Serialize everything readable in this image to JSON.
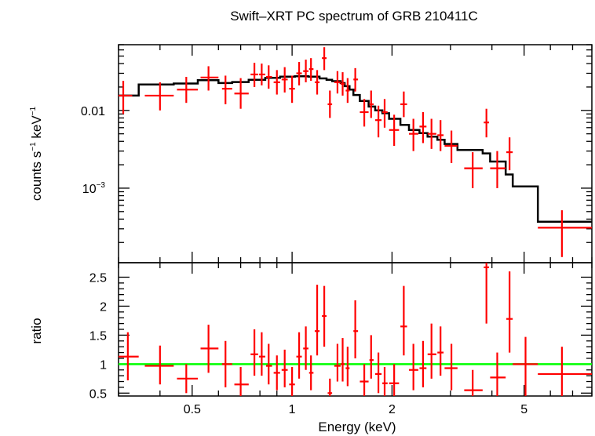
{
  "chart_data": {
    "title": "Swift–XRT PC spectrum of GRB 210411C",
    "xlabel": "Energy (keV)",
    "x_scale": "log",
    "xlim": [
      0.3,
      8.0
    ],
    "x_ticks": [
      {
        "value": 0.5,
        "label": "0.5"
      },
      {
        "value": 1,
        "label": "1"
      },
      {
        "value": 2,
        "label": "2"
      },
      {
        "value": 5,
        "label": "5"
      }
    ],
    "top_panel": {
      "type": "scatter",
      "ylabel_main": "counts s",
      "ylabel_sup1": "−1",
      "ylabel_mid": " keV",
      "ylabel_sup2": "−1",
      "y_scale": "log",
      "ylim": [
        0.00011,
        0.07
      ],
      "y_ticks": [
        {
          "value": 0.01,
          "base": "0.01",
          "sup": ""
        },
        {
          "value": 0.001,
          "base": "10",
          "sup": "−3"
        }
      ],
      "data_color": "#ff0000",
      "model_color": "#000000",
      "data": [
        {
          "x": 0.31,
          "xlo": 0.3,
          "xhi": 0.33,
          "y": 0.0155,
          "ylo": 0.009,
          "yhi": 0.024
        },
        {
          "x": 0.4,
          "xlo": 0.36,
          "xhi": 0.44,
          "y": 0.0155,
          "ylo": 0.01,
          "yhi": 0.023
        },
        {
          "x": 0.48,
          "xlo": 0.45,
          "xhi": 0.52,
          "y": 0.0185,
          "ylo": 0.0125,
          "yhi": 0.027
        },
        {
          "x": 0.56,
          "xlo": 0.53,
          "xhi": 0.6,
          "y": 0.0265,
          "ylo": 0.018,
          "yhi": 0.037
        },
        {
          "x": 0.63,
          "xlo": 0.615,
          "xhi": 0.66,
          "y": 0.019,
          "ylo": 0.012,
          "yhi": 0.028
        },
        {
          "x": 0.7,
          "xlo": 0.67,
          "xhi": 0.74,
          "y": 0.0165,
          "ylo": 0.0105,
          "yhi": 0.026
        },
        {
          "x": 0.77,
          "xlo": 0.75,
          "xhi": 0.79,
          "y": 0.029,
          "ylo": 0.02,
          "yhi": 0.041
        },
        {
          "x": 0.81,
          "xlo": 0.795,
          "xhi": 0.83,
          "y": 0.029,
          "ylo": 0.021,
          "yhi": 0.04
        },
        {
          "x": 0.85,
          "xlo": 0.835,
          "xhi": 0.87,
          "y": 0.027,
          "ylo": 0.019,
          "yhi": 0.038
        },
        {
          "x": 0.9,
          "xlo": 0.88,
          "xhi": 0.92,
          "y": 0.023,
          "ylo": 0.016,
          "yhi": 0.033
        },
        {
          "x": 0.95,
          "xlo": 0.93,
          "xhi": 0.97,
          "y": 0.025,
          "ylo": 0.017,
          "yhi": 0.036
        },
        {
          "x": 1.0,
          "xlo": 0.98,
          "xhi": 1.02,
          "y": 0.019,
          "ylo": 0.0125,
          "yhi": 0.028
        },
        {
          "x": 1.05,
          "xlo": 1.03,
          "xhi": 1.07,
          "y": 0.03,
          "ylo": 0.021,
          "yhi": 0.042
        },
        {
          "x": 1.1,
          "xlo": 1.08,
          "xhi": 1.12,
          "y": 0.032,
          "ylo": 0.023,
          "yhi": 0.045
        },
        {
          "x": 1.14,
          "xlo": 1.125,
          "xhi": 1.16,
          "y": 0.034,
          "ylo": 0.024,
          "yhi": 0.047
        },
        {
          "x": 1.19,
          "xlo": 1.17,
          "xhi": 1.21,
          "y": 0.023,
          "ylo": 0.016,
          "yhi": 0.033
        },
        {
          "x": 1.25,
          "xlo": 1.23,
          "xhi": 1.27,
          "y": 0.047,
          "ylo": 0.033,
          "yhi": 0.065
        },
        {
          "x": 1.3,
          "xlo": 1.28,
          "xhi": 1.32,
          "y": 0.012,
          "ylo": 0.008,
          "yhi": 0.018
        },
        {
          "x": 1.37,
          "xlo": 1.34,
          "xhi": 1.4,
          "y": 0.023,
          "ylo": 0.0165,
          "yhi": 0.032
        },
        {
          "x": 1.42,
          "xlo": 1.4,
          "xhi": 1.44,
          "y": 0.022,
          "ylo": 0.0155,
          "yhi": 0.031
        },
        {
          "x": 1.47,
          "xlo": 1.45,
          "xhi": 1.49,
          "y": 0.018,
          "ylo": 0.0125,
          "yhi": 0.026
        },
        {
          "x": 1.55,
          "xlo": 1.53,
          "xhi": 1.58,
          "y": 0.025,
          "ylo": 0.0175,
          "yhi": 0.035
        },
        {
          "x": 1.65,
          "xlo": 1.6,
          "xhi": 1.7,
          "y": 0.0095,
          "ylo": 0.0062,
          "yhi": 0.014
        },
        {
          "x": 1.73,
          "xlo": 1.71,
          "xhi": 1.76,
          "y": 0.012,
          "ylo": 0.008,
          "yhi": 0.018
        },
        {
          "x": 1.82,
          "xlo": 1.78,
          "xhi": 1.86,
          "y": 0.0075,
          "ylo": 0.0045,
          "yhi": 0.0115
        },
        {
          "x": 1.9,
          "xlo": 1.87,
          "xhi": 1.94,
          "y": 0.0095,
          "ylo": 0.006,
          "yhi": 0.014
        },
        {
          "x": 2.03,
          "xlo": 1.96,
          "xhi": 2.1,
          "y": 0.0056,
          "ylo": 0.0035,
          "yhi": 0.0088
        },
        {
          "x": 2.17,
          "xlo": 2.12,
          "xhi": 2.22,
          "y": 0.012,
          "ylo": 0.0082,
          "yhi": 0.0175
        },
        {
          "x": 2.32,
          "xlo": 2.25,
          "xhi": 2.4,
          "y": 0.005,
          "ylo": 0.003,
          "yhi": 0.0078
        },
        {
          "x": 2.48,
          "xlo": 2.42,
          "xhi": 2.54,
          "y": 0.0062,
          "ylo": 0.0038,
          "yhi": 0.0095
        },
        {
          "x": 2.63,
          "xlo": 2.56,
          "xhi": 2.72,
          "y": 0.005,
          "ylo": 0.0032,
          "yhi": 0.0078
        },
        {
          "x": 2.8,
          "xlo": 2.74,
          "xhi": 2.86,
          "y": 0.0048,
          "ylo": 0.003,
          "yhi": 0.0075
        },
        {
          "x": 3.02,
          "xlo": 2.88,
          "xhi": 3.15,
          "y": 0.0035,
          "ylo": 0.0021,
          "yhi": 0.0055
        },
        {
          "x": 3.5,
          "xlo": 3.3,
          "xhi": 3.75,
          "y": 0.0018,
          "ylo": 0.001,
          "yhi": 0.0029
        },
        {
          "x": 3.85,
          "xlo": 3.78,
          "xhi": 3.92,
          "y": 0.007,
          "ylo": 0.0045,
          "yhi": 0.0105
        },
        {
          "x": 4.15,
          "xlo": 3.95,
          "xhi": 4.4,
          "y": 0.0018,
          "ylo": 0.001,
          "yhi": 0.003
        },
        {
          "x": 4.52,
          "xlo": 4.42,
          "xhi": 4.62,
          "y": 0.0029,
          "ylo": 0.0017,
          "yhi": 0.0045
        },
        {
          "x": 6.5,
          "xlo": 5.5,
          "xhi": 8.0,
          "y": 0.00031,
          "ylo": 0.00013,
          "yhi": 0.00052
        }
      ],
      "model": [
        {
          "x0": 0.3,
          "x1": 0.345,
          "y": 0.0155
        },
        {
          "x0": 0.345,
          "x1": 0.44,
          "y": 0.0215
        },
        {
          "x0": 0.44,
          "x1": 0.52,
          "y": 0.0222
        },
        {
          "x0": 0.52,
          "x1": 0.6,
          "y": 0.0245
        },
        {
          "x0": 0.6,
          "x1": 0.66,
          "y": 0.0225
        },
        {
          "x0": 0.66,
          "x1": 0.74,
          "y": 0.0232
        },
        {
          "x0": 0.74,
          "x1": 0.83,
          "y": 0.0248
        },
        {
          "x0": 0.83,
          "x1": 0.92,
          "y": 0.0262
        },
        {
          "x0": 0.92,
          "x1": 1.02,
          "y": 0.0272
        },
        {
          "x0": 1.02,
          "x1": 1.12,
          "y": 0.0275
        },
        {
          "x0": 1.12,
          "x1": 1.21,
          "y": 0.0272
        },
        {
          "x0": 1.21,
          "x1": 1.27,
          "y": 0.0258
        },
        {
          "x0": 1.27,
          "x1": 1.32,
          "y": 0.0248
        },
        {
          "x0": 1.32,
          "x1": 1.4,
          "y": 0.0238
        },
        {
          "x0": 1.4,
          "x1": 1.44,
          "y": 0.0225
        },
        {
          "x0": 1.44,
          "x1": 1.49,
          "y": 0.0205
        },
        {
          "x0": 1.49,
          "x1": 1.53,
          "y": 0.0185
        },
        {
          "x0": 1.53,
          "x1": 1.6,
          "y": 0.0158
        },
        {
          "x0": 1.6,
          "x1": 1.7,
          "y": 0.0132
        },
        {
          "x0": 1.7,
          "x1": 1.78,
          "y": 0.0112
        },
        {
          "x0": 1.78,
          "x1": 1.87,
          "y": 0.01
        },
        {
          "x0": 1.87,
          "x1": 1.96,
          "y": 0.0092
        },
        {
          "x0": 1.96,
          "x1": 2.12,
          "y": 0.0078
        },
        {
          "x0": 2.12,
          "x1": 2.25,
          "y": 0.0065
        },
        {
          "x0": 2.25,
          "x1": 2.42,
          "y": 0.0056
        },
        {
          "x0": 2.42,
          "x1": 2.56,
          "y": 0.0051
        },
        {
          "x0": 2.56,
          "x1": 2.74,
          "y": 0.0046
        },
        {
          "x0": 2.74,
          "x1": 2.88,
          "y": 0.0042
        },
        {
          "x0": 2.88,
          "x1": 3.15,
          "y": 0.0037
        },
        {
          "x0": 3.15,
          "x1": 3.75,
          "y": 0.0031
        },
        {
          "x0": 3.75,
          "x1": 3.95,
          "y": 0.0028
        },
        {
          "x0": 3.95,
          "x1": 4.4,
          "y": 0.0022
        },
        {
          "x0": 4.4,
          "x1": 4.62,
          "y": 0.0015
        },
        {
          "x0": 4.62,
          "x1": 5.5,
          "y": 0.00105
        },
        {
          "x0": 5.5,
          "x1": 8.0,
          "y": 0.00037
        }
      ]
    },
    "bottom_panel": {
      "type": "scatter",
      "ylabel": "ratio",
      "y_scale": "linear",
      "ylim": [
        0.45,
        2.75
      ],
      "y_ticks": [
        {
          "value": 0.5,
          "label": "0.5"
        },
        {
          "value": 1,
          "label": "1"
        },
        {
          "value": 1.5,
          "label": "1.5"
        },
        {
          "value": 2,
          "label": "2"
        },
        {
          "value": 2.5,
          "label": "2.5"
        }
      ],
      "reference_line": 1.0,
      "reference_color": "#00ff00",
      "data_color": "#ff0000",
      "data": [
        {
          "x": 0.32,
          "xlo": 0.3,
          "xhi": 0.345,
          "y": 1.13,
          "ylo": 0.72,
          "yhi": 1.55
        },
        {
          "x": 0.4,
          "xlo": 0.36,
          "xhi": 0.44,
          "y": 0.97,
          "ylo": 0.65,
          "yhi": 1.32
        },
        {
          "x": 0.48,
          "xlo": 0.45,
          "xhi": 0.52,
          "y": 0.75,
          "ylo": 0.5,
          "yhi": 1.0
        },
        {
          "x": 0.56,
          "xlo": 0.53,
          "xhi": 0.6,
          "y": 1.27,
          "ylo": 0.85,
          "yhi": 1.68
        },
        {
          "x": 0.63,
          "xlo": 0.615,
          "xhi": 0.66,
          "y": 1.0,
          "ylo": 0.6,
          "yhi": 1.4
        },
        {
          "x": 0.7,
          "xlo": 0.67,
          "xhi": 0.74,
          "y": 0.65,
          "ylo": 0.4,
          "yhi": 0.95
        },
        {
          "x": 0.77,
          "xlo": 0.75,
          "xhi": 0.79,
          "y": 1.17,
          "ylo": 0.8,
          "yhi": 1.6
        },
        {
          "x": 0.81,
          "xlo": 0.795,
          "xhi": 0.83,
          "y": 1.13,
          "ylo": 0.8,
          "yhi": 1.55
        },
        {
          "x": 0.85,
          "xlo": 0.835,
          "xhi": 0.87,
          "y": 0.97,
          "ylo": 0.65,
          "yhi": 1.35
        },
        {
          "x": 0.9,
          "xlo": 0.88,
          "xhi": 0.92,
          "y": 0.85,
          "ylo": 0.55,
          "yhi": 1.15
        },
        {
          "x": 0.95,
          "xlo": 0.93,
          "xhi": 0.97,
          "y": 0.9,
          "ylo": 0.6,
          "yhi": 1.25
        },
        {
          "x": 1.0,
          "xlo": 0.98,
          "xhi": 1.02,
          "y": 0.65,
          "ylo": 0.4,
          "yhi": 0.95
        },
        {
          "x": 1.05,
          "xlo": 1.03,
          "xhi": 1.07,
          "y": 1.13,
          "ylo": 0.75,
          "yhi": 1.55
        },
        {
          "x": 1.1,
          "xlo": 1.08,
          "xhi": 1.12,
          "y": 1.27,
          "ylo": 0.9,
          "yhi": 1.65
        },
        {
          "x": 1.14,
          "xlo": 1.125,
          "xhi": 1.16,
          "y": 0.85,
          "ylo": 0.55,
          "yhi": 1.15
        },
        {
          "x": 1.19,
          "xlo": 1.17,
          "xhi": 1.21,
          "y": 1.57,
          "ylo": 1.15,
          "yhi": 2.37
        },
        {
          "x": 1.25,
          "xlo": 1.23,
          "xhi": 1.27,
          "y": 1.83,
          "ylo": 1.3,
          "yhi": 2.35
        },
        {
          "x": 1.3,
          "xlo": 1.28,
          "xhi": 1.32,
          "y": 0.5,
          "ylo": 0.35,
          "yhi": 0.75
        },
        {
          "x": 1.37,
          "xlo": 1.34,
          "xhi": 1.4,
          "y": 0.97,
          "ylo": 0.7,
          "yhi": 1.35
        },
        {
          "x": 1.42,
          "xlo": 1.4,
          "xhi": 1.44,
          "y": 1.0,
          "ylo": 0.7,
          "yhi": 1.45
        },
        {
          "x": 1.47,
          "xlo": 1.45,
          "xhi": 1.49,
          "y": 0.93,
          "ylo": 0.62,
          "yhi": 1.3
        },
        {
          "x": 1.55,
          "xlo": 1.53,
          "xhi": 1.58,
          "y": 1.57,
          "ylo": 1.1,
          "yhi": 2.1
        },
        {
          "x": 1.65,
          "xlo": 1.6,
          "xhi": 1.7,
          "y": 0.7,
          "ylo": 0.45,
          "yhi": 1.0
        },
        {
          "x": 1.73,
          "xlo": 1.71,
          "xhi": 1.76,
          "y": 1.07,
          "ylo": 0.75,
          "yhi": 1.5
        },
        {
          "x": 1.82,
          "xlo": 1.78,
          "xhi": 1.86,
          "y": 0.83,
          "ylo": 0.5,
          "yhi": 1.2
        },
        {
          "x": 1.9,
          "xlo": 1.87,
          "xhi": 1.94,
          "y": 0.67,
          "ylo": 0.4,
          "yhi": 0.95
        },
        {
          "x": 2.03,
          "xlo": 1.96,
          "xhi": 2.1,
          "y": 0.67,
          "ylo": 0.4,
          "yhi": 1.0
        },
        {
          "x": 2.17,
          "xlo": 2.12,
          "xhi": 2.22,
          "y": 1.65,
          "ylo": 1.15,
          "yhi": 2.35
        },
        {
          "x": 2.32,
          "xlo": 2.25,
          "xhi": 2.4,
          "y": 0.9,
          "ylo": 0.55,
          "yhi": 1.35
        },
        {
          "x": 2.48,
          "xlo": 2.42,
          "xhi": 2.54,
          "y": 0.93,
          "ylo": 0.6,
          "yhi": 1.4
        },
        {
          "x": 2.63,
          "xlo": 2.56,
          "xhi": 2.72,
          "y": 1.17,
          "ylo": 0.75,
          "yhi": 1.7
        },
        {
          "x": 2.8,
          "xlo": 2.74,
          "xhi": 2.86,
          "y": 1.2,
          "ylo": 0.8,
          "yhi": 1.65
        },
        {
          "x": 3.02,
          "xlo": 2.88,
          "xhi": 3.15,
          "y": 0.93,
          "ylo": 0.55,
          "yhi": 1.35
        },
        {
          "x": 3.5,
          "xlo": 3.3,
          "xhi": 3.75,
          "y": 0.55,
          "ylo": 0.3,
          "yhi": 0.9
        },
        {
          "x": 3.85,
          "xlo": 3.78,
          "xhi": 3.92,
          "y": 2.67,
          "ylo": 1.7,
          "yhi": 2.8
        },
        {
          "x": 4.15,
          "xlo": 3.95,
          "xhi": 4.4,
          "y": 0.77,
          "ylo": 0.45,
          "yhi": 1.2
        },
        {
          "x": 4.52,
          "xlo": 4.42,
          "xhi": 4.62,
          "y": 1.78,
          "ylo": 1.2,
          "yhi": 2.6
        },
        {
          "x": 5.05,
          "xlo": 4.62,
          "xhi": 5.5,
          "y": 1.0,
          "ylo": 0.45,
          "yhi": 1.47
        },
        {
          "x": 6.5,
          "xlo": 5.5,
          "xhi": 8.0,
          "y": 0.83,
          "ylo": 0.4,
          "yhi": 1.3
        }
      ]
    }
  }
}
